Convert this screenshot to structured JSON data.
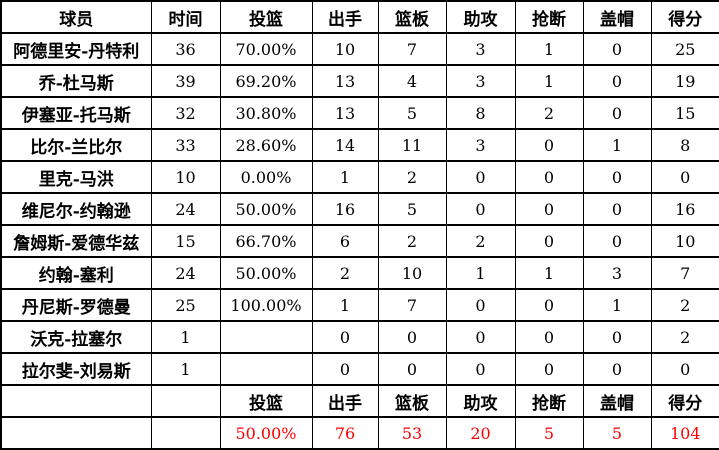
{
  "chart_data": {
    "type": "table",
    "columns": [
      "球员",
      "时间",
      "投篮",
      "出手",
      "篮板",
      "助攻",
      "抢断",
      "盖帽",
      "得分"
    ],
    "rows": [
      [
        "阿德里安-丹特利",
        "36",
        "70.00%",
        "10",
        "7",
        "3",
        "1",
        "0",
        "25"
      ],
      [
        "乔-杜马斯",
        "39",
        "69.20%",
        "13",
        "4",
        "3",
        "1",
        "0",
        "19"
      ],
      [
        "伊塞亚-托马斯",
        "32",
        "30.80%",
        "13",
        "5",
        "8",
        "2",
        "0",
        "15"
      ],
      [
        "比尔-兰比尔",
        "33",
        "28.60%",
        "14",
        "11",
        "3",
        "0",
        "1",
        "8"
      ],
      [
        "里克-马洪",
        "10",
        "0.00%",
        "1",
        "2",
        "0",
        "0",
        "0",
        "0"
      ],
      [
        "维尼尔-约翰逊",
        "24",
        "50.00%",
        "16",
        "5",
        "0",
        "0",
        "0",
        "16"
      ],
      [
        "詹姆斯-爱德华兹",
        "15",
        "66.70%",
        "6",
        "2",
        "2",
        "0",
        "0",
        "10"
      ],
      [
        "约翰-塞利",
        "24",
        "50.00%",
        "2",
        "10",
        "1",
        "1",
        "3",
        "7"
      ],
      [
        "丹尼斯-罗德曼",
        "25",
        "100.00%",
        "1",
        "7",
        "0",
        "0",
        "1",
        "2"
      ],
      [
        "沃克-拉塞尔",
        "1",
        "",
        "0",
        "0",
        "0",
        "0",
        "0",
        "2"
      ],
      [
        "拉尔斐-刘易斯",
        "1",
        "",
        "0",
        "0",
        "0",
        "0",
        "0",
        "0"
      ]
    ],
    "footer_labels": [
      "",
      "",
      "投篮",
      "出手",
      "篮板",
      "助攻",
      "抢断",
      "盖帽",
      "得分"
    ],
    "totals": [
      "",
      "",
      "50.00%",
      "76",
      "53",
      "20",
      "5",
      "5",
      "104"
    ]
  },
  "colors": {
    "total_text": "#FF0000",
    "border": "#000000",
    "background": "#FFFFFF",
    "header_text": "#000000"
  }
}
